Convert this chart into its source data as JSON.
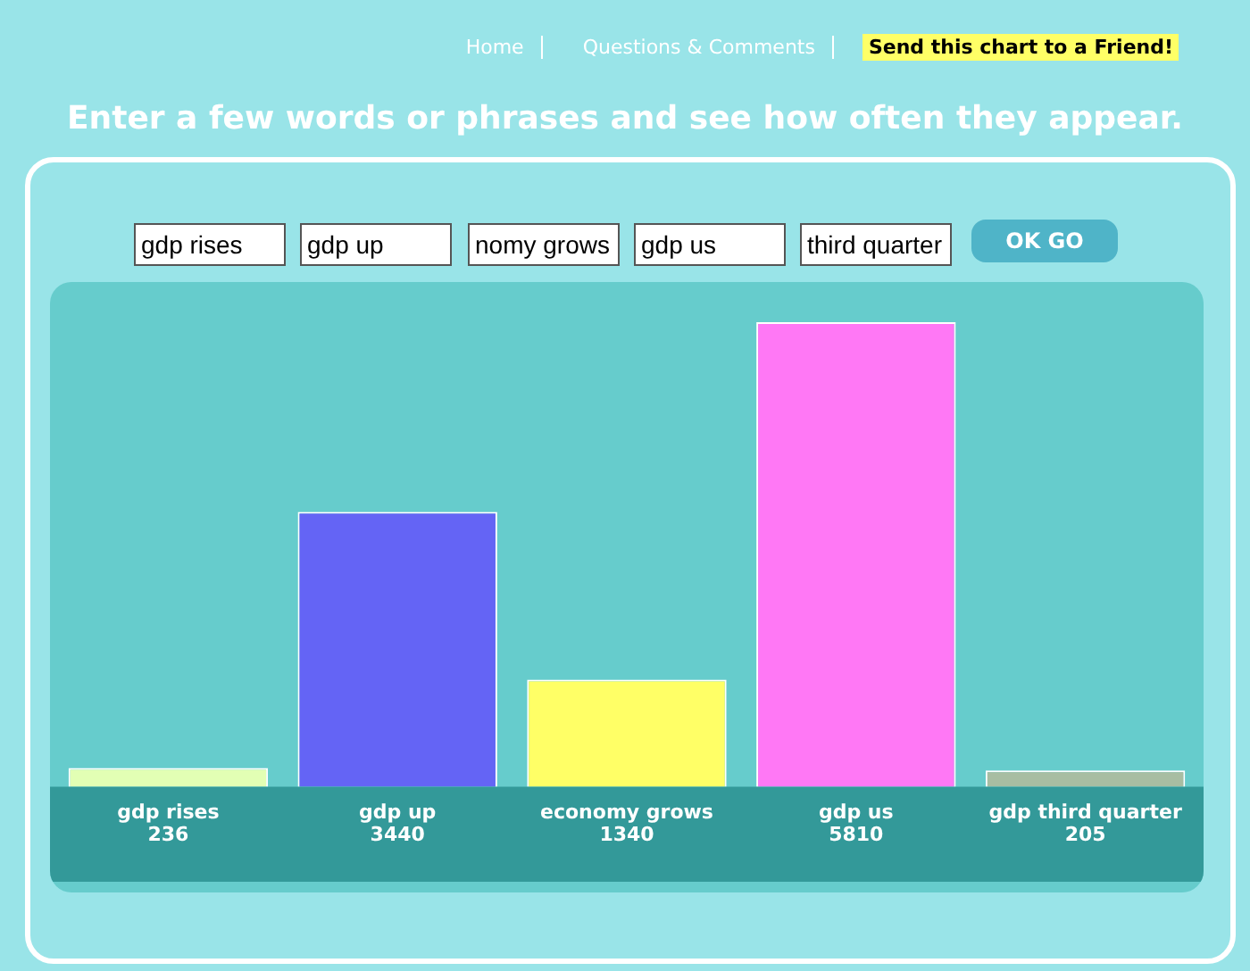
{
  "chart_data": {
    "type": "bar",
    "title": "Enter a few words or phrases and see how often they appear.",
    "categories": [
      "gdp rises",
      "gdp up",
      "economy grows",
      "gdp us",
      "gdp third quarter"
    ],
    "values": [
      236,
      3440,
      1340,
      5810,
      205
    ],
    "colors": [
      "#e2ffb4",
      "#6464f5",
      "#ffff66",
      "#ff78f5",
      "#a8bda2"
    ],
    "data_labels": true,
    "grid": false,
    "legend": false,
    "tick_labels": "x",
    "annotations": [
      "Home",
      "Questions & Comments",
      "Send this chart to a Friend!",
      "gdp rises",
      "gdp up",
      "nomy grows",
      "gdp us",
      "third quarter",
      "OK GO"
    ]
  }
}
